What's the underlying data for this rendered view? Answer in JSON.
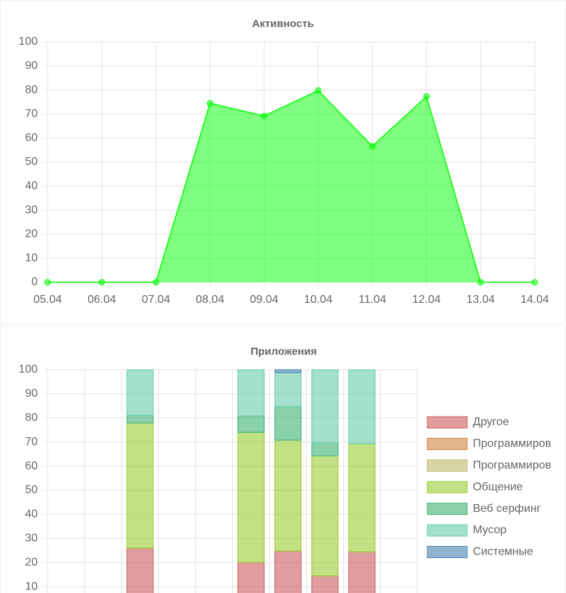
{
  "chart_data": [
    {
      "type": "line",
      "title": "Активность",
      "categories": [
        "05.04",
        "06.04",
        "07.04",
        "08.04",
        "09.04",
        "10.04",
        "11.04",
        "12.04",
        "13.04",
        "14.04"
      ],
      "series": [
        {
          "color": "#00ff00",
          "values": [
            0,
            0,
            0,
            74.5,
            69.2,
            79.8,
            56.6,
            77.3,
            0,
            0
          ]
        }
      ],
      "ylim": [
        0,
        100
      ],
      "yticks": [
        0,
        10,
        20,
        30,
        40,
        50,
        60,
        70,
        80,
        90,
        100
      ],
      "grid": true
    },
    {
      "type": "stacked-bar",
      "title": "Приложения",
      "categories": [
        null,
        null,
        null,
        null,
        null,
        null,
        null,
        null,
        null,
        null
      ],
      "series": [
        {
          "name": "Другое",
          "color": "#cd5c5c",
          "values": [
            0,
            0,
            26.0,
            0,
            0,
            20.1,
            24.8,
            14.5,
            24.5,
            0
          ]
        },
        {
          "name": "Программиров",
          "color": "#cd853f",
          "values": [
            0,
            0,
            0,
            0,
            0,
            0,
            0,
            0,
            0,
            0
          ]
        },
        {
          "name": "Программиров",
          "color": "#bdb76b",
          "values": [
            0,
            0,
            0,
            0,
            0,
            0,
            0,
            0,
            0,
            0
          ]
        },
        {
          "name": "Общение",
          "color": "#9acd32",
          "values": [
            0,
            0,
            51.9,
            0,
            0,
            53.9,
            46.0,
            49.8,
            44.8,
            0
          ]
        },
        {
          "name": "Веб серфинг",
          "color": "#3cb371",
          "values": [
            0,
            0,
            3.2,
            0,
            0,
            6.8,
            13.9,
            5.3,
            0,
            0
          ]
        },
        {
          "name": "Мусор",
          "color": "#66cdaa",
          "values": [
            0,
            0,
            18.9,
            0,
            0,
            19.2,
            14.1,
            30.4,
            30.7,
            0
          ]
        },
        {
          "name": "Системные",
          "color": "#4682b4",
          "values": [
            0,
            0,
            0,
            0,
            0,
            0,
            1.2,
            0,
            0,
            0
          ]
        }
      ],
      "ylim": [
        0,
        100
      ],
      "yticks": [
        10,
        20,
        30,
        40,
        50,
        60,
        70,
        80,
        90,
        100
      ],
      "grid": true,
      "legend": "right"
    }
  ]
}
